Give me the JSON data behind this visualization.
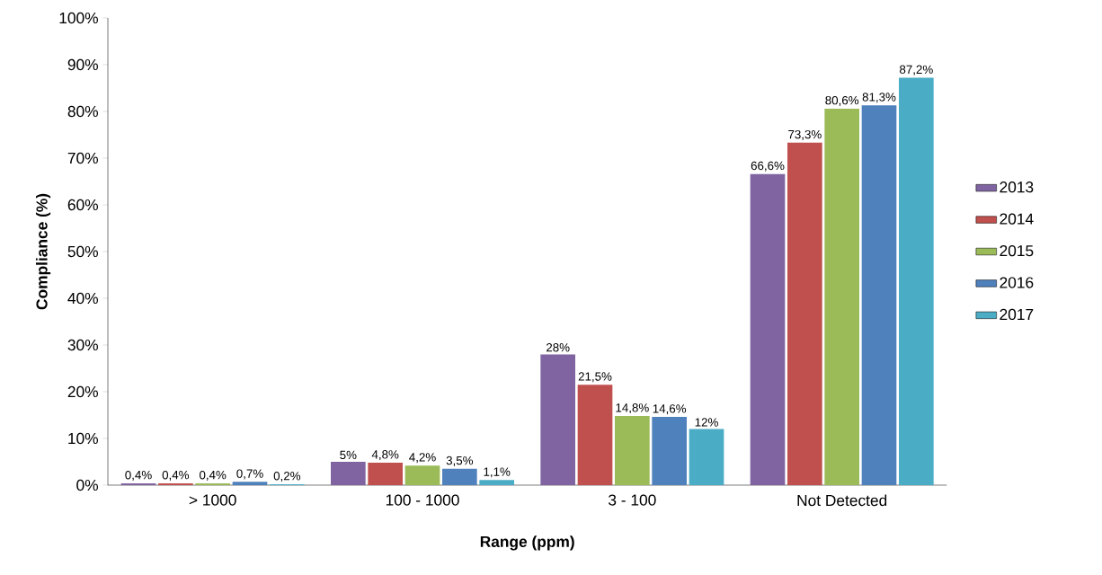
{
  "chart_data": {
    "type": "bar",
    "xlabel": "Range (ppm)",
    "ylabel": "Compliance (%)",
    "categories": [
      "> 1000",
      "100 - 1000",
      "3 - 100",
      "Not Detected"
    ],
    "ylim": [
      0,
      100
    ],
    "yticks": [
      {
        "value": 0,
        "label": "0%"
      },
      {
        "value": 10,
        "label": "10%"
      },
      {
        "value": 20,
        "label": "20%"
      },
      {
        "value": 30,
        "label": "30%"
      },
      {
        "value": 40,
        "label": "40%"
      },
      {
        "value": 50,
        "label": "50%"
      },
      {
        "value": 60,
        "label": "60%"
      },
      {
        "value": 70,
        "label": "70%"
      },
      {
        "value": 80,
        "label": "80%"
      },
      {
        "value": 90,
        "label": "90%"
      },
      {
        "value": 100,
        "label": "100%"
      }
    ],
    "legend": "right",
    "grid": false,
    "series": [
      {
        "name": "2013",
        "color": "#8064a2",
        "values": [
          0.4,
          5,
          28,
          66.6
        ],
        "value_labels": [
          "0,4%",
          "5%",
          "28%",
          "66,6%"
        ]
      },
      {
        "name": "2014",
        "color": "#c0504d",
        "values": [
          0.4,
          4.8,
          21.5,
          73.3
        ],
        "value_labels": [
          "0,4%",
          "4,8%",
          "21,5%",
          "73,3%"
        ]
      },
      {
        "name": "2015",
        "color": "#9bbb59",
        "values": [
          0.4,
          4.2,
          14.8,
          80.6
        ],
        "value_labels": [
          "0,4%",
          "4,2%",
          "14,8%",
          "80,6%"
        ]
      },
      {
        "name": "2016",
        "color": "#4f81bd",
        "values": [
          0.7,
          3.5,
          14.6,
          81.3
        ],
        "value_labels": [
          "0,7%",
          "3,5%",
          "14,6%",
          "81,3%"
        ]
      },
      {
        "name": "2017",
        "color": "#4bacc6",
        "values": [
          0.2,
          1.1,
          12,
          87.2
        ],
        "value_labels": [
          "0,2%",
          "1,1%",
          "12%",
          "87,2%"
        ]
      }
    ]
  }
}
